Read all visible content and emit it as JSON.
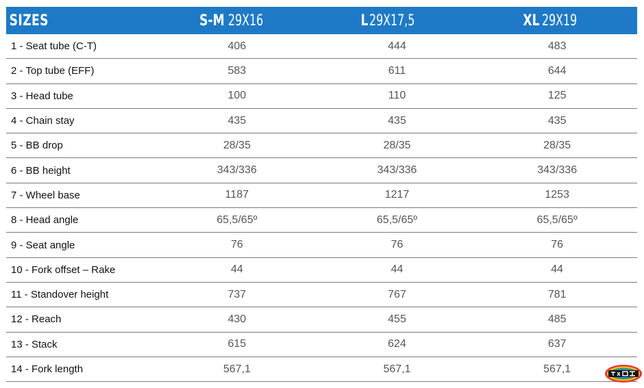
{
  "header": {
    "label": "SIZES",
    "columns": [
      {
        "bold": "S-M",
        "normal": " 29X16"
      },
      {
        "bold": "L",
        "normal": " 29X17,5"
      },
      {
        "bold": "XL",
        "normal": " 29X19"
      }
    ]
  },
  "rows": [
    {
      "label": "1 - Seat tube (C-T)",
      "values": [
        "406",
        "444",
        "483"
      ]
    },
    {
      "label": "2 - Top tube (EFF)",
      "values": [
        "583",
        "611",
        "644"
      ]
    },
    {
      "label": "3 - Head tube",
      "values": [
        "100",
        "110",
        "125"
      ]
    },
    {
      "label": "4 - Chain stay",
      "values": [
        "435",
        "435",
        "435"
      ]
    },
    {
      "label": "5 - BB drop",
      "values": [
        "28/35",
        "28/35",
        "28/35"
      ]
    },
    {
      "label": "6 - BB height",
      "values": [
        "343/336",
        "343/336",
        "343/336"
      ]
    },
    {
      "label": "7 - Wheel base",
      "values": [
        "1187",
        "1217",
        "1253"
      ]
    },
    {
      "label": "8 - Head angle",
      "values": [
        "65,5/65º",
        "65,5/65º",
        "65,5/65º"
      ]
    },
    {
      "label": "9 - Seat angle",
      "values": [
        "76",
        "76",
        "76"
      ]
    },
    {
      "label": "10 - Fork offset – Rake",
      "values": [
        "44",
        "44",
        "44"
      ]
    },
    {
      "label": "11 - Standover height",
      "values": [
        "737",
        "767",
        "781"
      ]
    },
    {
      "label": "12 - Reach",
      "values": [
        "430",
        "455",
        "485"
      ]
    },
    {
      "label": "13 - Stack",
      "values": [
        "615",
        "624",
        "637"
      ]
    },
    {
      "label": "14 - Fork length",
      "values": [
        "567,1",
        "567,1",
        "567,1"
      ]
    }
  ],
  "colors": {
    "header_bg": "#1e7ac6",
    "header_text": "#ffffff",
    "row_border": "#7a7a7a"
  },
  "watermark": {
    "icon": "site-logo-icon"
  }
}
